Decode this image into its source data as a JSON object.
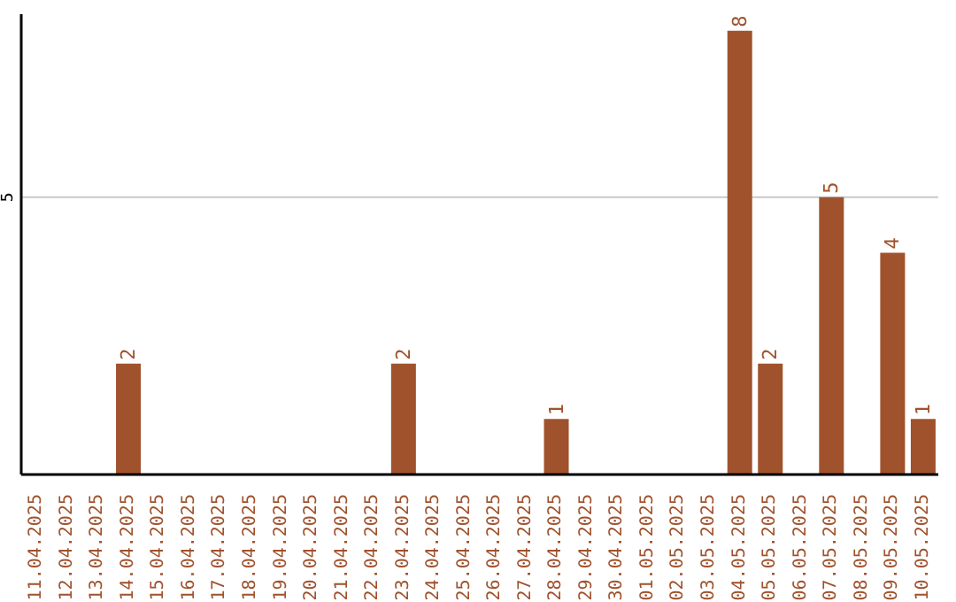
{
  "chart_data": {
    "type": "bar",
    "categories": [
      "11.04.2025",
      "12.04.2025",
      "13.04.2025",
      "14.04.2025",
      "15.04.2025",
      "16.04.2025",
      "17.04.2025",
      "18.04.2025",
      "19.04.2025",
      "20.04.2025",
      "21.04.2025",
      "22.04.2025",
      "23.04.2025",
      "24.04.2025",
      "25.04.2025",
      "26.04.2025",
      "27.04.2025",
      "28.04.2025",
      "29.04.2025",
      "30.04.2025",
      "01.05.2025",
      "02.05.2025",
      "03.05.2025",
      "04.05.2025",
      "05.05.2025",
      "06.05.2025",
      "07.05.2025",
      "08.05.2025",
      "09.05.2025",
      "10.05.2025"
    ],
    "values": [
      null,
      null,
      null,
      2,
      null,
      null,
      null,
      null,
      null,
      null,
      null,
      null,
      2,
      null,
      null,
      null,
      null,
      1,
      null,
      null,
      null,
      null,
      null,
      8,
      2,
      null,
      5,
      null,
      4,
      1
    ],
    "color": "#a0522d",
    "ylim": [
      0,
      8.3
    ],
    "yticks": [
      5
    ],
    "grid": "y",
    "data_labels": true
  }
}
